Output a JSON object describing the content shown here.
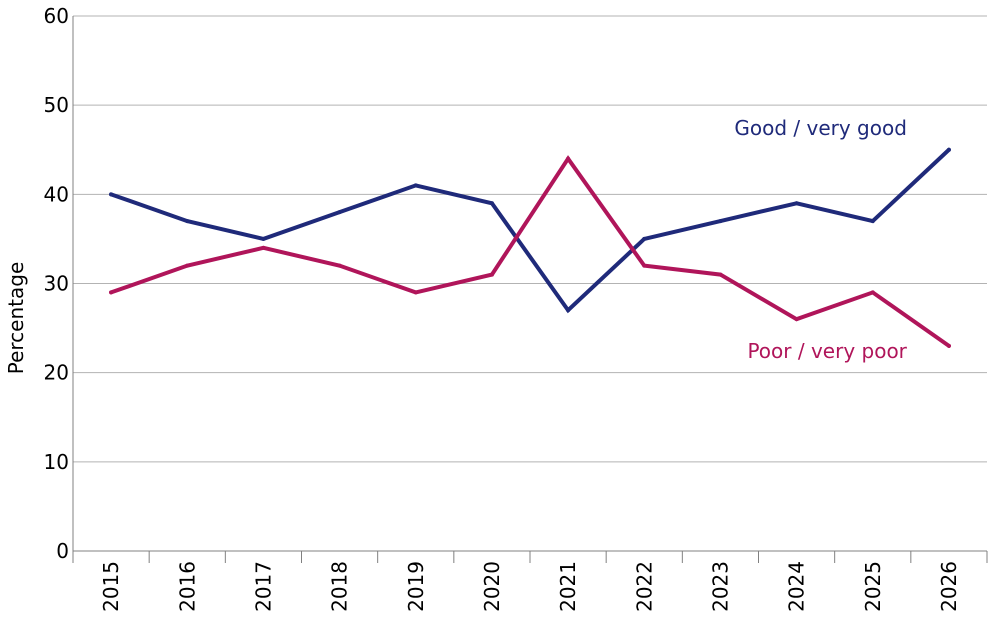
{
  "chart_data": {
    "type": "line",
    "title": "",
    "xlabel": "",
    "ylabel": "Percentage",
    "ylim": [
      0,
      60
    ],
    "yticks": [
      0,
      10,
      20,
      30,
      40,
      50,
      60
    ],
    "grid": true,
    "categories": [
      "2015",
      "2016",
      "2017",
      "2018",
      "2019",
      "2020",
      "2021",
      "2022",
      "2023",
      "2024",
      "2025",
      "2026"
    ],
    "series": [
      {
        "name": "Good / very good",
        "color": "#1f2a7a",
        "values": [
          40,
          37,
          35,
          38,
          41,
          39,
          27,
          35,
          37,
          39,
          37,
          45
        ]
      },
      {
        "name": "Poor / very poor",
        "color": "#b0155a",
        "values": [
          29,
          32,
          34,
          32,
          29,
          31,
          44,
          32,
          31,
          26,
          29,
          23
        ]
      }
    ]
  }
}
